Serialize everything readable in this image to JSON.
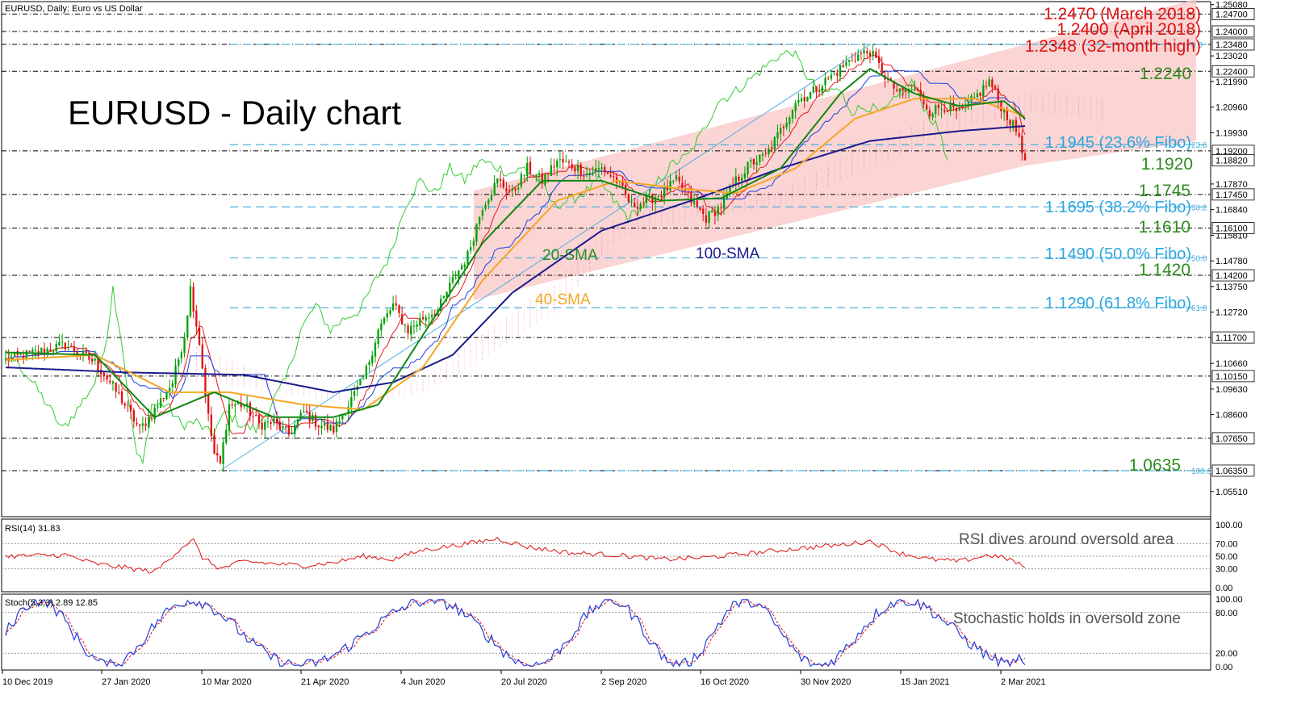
{
  "header": {
    "symbol_info": "EURUSD, Daily:  Euro vs US Dollar",
    "big_title": "EURUSD - Daily chart"
  },
  "colors": {
    "bull": "#00a000",
    "bear": "#e01010",
    "sma20": "#118811",
    "sma40": "#f5a623",
    "sma100": "#1a1a8c",
    "tenkan": "#e31a1c",
    "kijun": "#1f3fdf",
    "chikou": "#33cc33",
    "channel": "#f9c5c5",
    "fibo": "#4fb0e0",
    "level": "#000000",
    "red_ann": "#e01010",
    "green_ann": "#2e8b1e",
    "blue_ann": "#2aa7e0",
    "rsi": "#e01010",
    "stoch_k": "#1f3fdf",
    "stoch_d": "#e01010"
  },
  "chart_data": {
    "type": "candlestick",
    "ylim": [
      1.045,
      1.252
    ],
    "x_tick_labels": [
      "10 Dec 2019",
      "27 Jan 2020",
      "10 Mar 2020",
      "21 Apr 2020",
      "4 Jun 2020",
      "20 Jul 2020",
      "2 Sep 2020",
      "16 Oct 2020",
      "30 Nov 2020",
      "15 Jan 2021",
      "2 Mar 2021"
    ],
    "price_axis_ticks": [
      "1.25080",
      "1.23020",
      "1.21990",
      "1.20960",
      "1.19930",
      "1.17870",
      "1.16840",
      "1.15810",
      "1.14780",
      "1.13750",
      "1.12720",
      "1.10660",
      "1.09630",
      "1.08600",
      "1.05510"
    ],
    "horizontal_levels": [
      {
        "value": 1.247,
        "label_axis": "1.24700",
        "annotation": "1.2470 (March 2018)",
        "color": "red"
      },
      {
        "value": 1.24,
        "label_axis": "1.24000",
        "annotation": "1.2400 (April 2018)",
        "color": "red"
      },
      {
        "value": 1.2348,
        "label_axis": "1.23480",
        "annotation": "1.2348 (32-month high)",
        "color": "red"
      },
      {
        "value": 1.224,
        "label_axis": "1.22400",
        "annotation": "1.2240",
        "color": "green"
      },
      {
        "value": 1.192,
        "label_axis": "1.19200",
        "annotation": "1.1920",
        "color": "green"
      },
      {
        "value": 1.1745,
        "label_axis": "1.17450",
        "annotation": "1.1745",
        "color": "green"
      },
      {
        "value": 1.161,
        "label_axis": "1.16100",
        "annotation": "1.1610",
        "color": "green"
      },
      {
        "value": 1.142,
        "label_axis": "1.14200",
        "annotation": "1.1420",
        "color": "green"
      },
      {
        "value": 1.117,
        "label_axis": "1.11700",
        "annotation": "",
        "color": "none"
      },
      {
        "value": 1.1015,
        "label_axis": "1.10150",
        "annotation": "",
        "color": "none"
      },
      {
        "value": 1.0765,
        "label_axis": "1.07650",
        "annotation": "",
        "color": "none"
      },
      {
        "value": 1.0635,
        "label_axis": "1.06350",
        "annotation": "1.0635",
        "color": "green"
      }
    ],
    "current_price_label": "1.18820",
    "current_price": 1.1882,
    "fibonacci": [
      {
        "value": 1.1945,
        "annotation": "1.1945 (23.6% Fibo)",
        "ratio": "23.6"
      },
      {
        "value": 1.1695,
        "annotation": "1.1695 (38.2% Fibo)",
        "ratio": "38.2"
      },
      {
        "value": 1.149,
        "annotation": "1.1490 (50.0% Fibo)",
        "ratio": "50.0"
      },
      {
        "value": 1.129,
        "annotation": "1.1290 (61.8% Fibo)",
        "ratio": "61.8"
      },
      {
        "value": 1.2348,
        "annotation": "",
        "ratio": "0.0"
      },
      {
        "value": 1.0635,
        "annotation": "",
        "ratio": "100.0"
      }
    ],
    "ma_labels": {
      "sma20": "20-SMA",
      "sma40": "40-SMA",
      "sma100": "100-SMA"
    },
    "price_anchors": [
      [
        0,
        1.108
      ],
      [
        10,
        1.111
      ],
      [
        20,
        1.114
      ],
      [
        30,
        1.107
      ],
      [
        35,
        1.099
      ],
      [
        40,
        1.09
      ],
      [
        45,
        1.08
      ],
      [
        50,
        1.088
      ],
      [
        56,
        1.099
      ],
      [
        60,
        1.118
      ],
      [
        62,
        1.137
      ],
      [
        65,
        1.115
      ],
      [
        68,
        1.085
      ],
      [
        70,
        1.07
      ],
      [
        72,
        1.066
      ],
      [
        75,
        1.09
      ],
      [
        80,
        1.09
      ],
      [
        85,
        1.082
      ],
      [
        90,
        1.083
      ],
      [
        95,
        1.078
      ],
      [
        100,
        1.087
      ],
      [
        105,
        1.082
      ],
      [
        110,
        1.08
      ],
      [
        115,
        1.09
      ],
      [
        120,
        1.1
      ],
      [
        125,
        1.12
      ],
      [
        130,
        1.13
      ],
      [
        135,
        1.12
      ],
      [
        140,
        1.125
      ],
      [
        145,
        1.128
      ],
      [
        150,
        1.14
      ],
      [
        155,
        1.15
      ],
      [
        160,
        1.17
      ],
      [
        165,
        1.18
      ],
      [
        170,
        1.175
      ],
      [
        175,
        1.185
      ],
      [
        180,
        1.18
      ],
      [
        185,
        1.188
      ],
      [
        190,
        1.186
      ],
      [
        195,
        1.183
      ],
      [
        200,
        1.185
      ],
      [
        205,
        1.18
      ],
      [
        210,
        1.17
      ],
      [
        215,
        1.172
      ],
      [
        220,
        1.175
      ],
      [
        225,
        1.18
      ],
      [
        230,
        1.172
      ],
      [
        235,
        1.165
      ],
      [
        240,
        1.17
      ],
      [
        245,
        1.18
      ],
      [
        250,
        1.187
      ],
      [
        255,
        1.19
      ],
      [
        260,
        1.2
      ],
      [
        265,
        1.212
      ],
      [
        270,
        1.215
      ],
      [
        275,
        1.22
      ],
      [
        280,
        1.225
      ],
      [
        285,
        1.23
      ],
      [
        290,
        1.232
      ],
      [
        293,
        1.226
      ],
      [
        296,
        1.22
      ],
      [
        300,
        1.215
      ],
      [
        305,
        1.217
      ],
      [
        310,
        1.208
      ],
      [
        315,
        1.21
      ],
      [
        320,
        1.207
      ],
      [
        325,
        1.213
      ],
      [
        330,
        1.22
      ],
      [
        334,
        1.21
      ],
      [
        337,
        1.204
      ],
      [
        340,
        1.198
      ],
      [
        342,
        1.1882
      ]
    ],
    "sma20_anchors": [
      [
        0,
        1.111
      ],
      [
        30,
        1.11
      ],
      [
        50,
        1.085
      ],
      [
        70,
        1.095
      ],
      [
        90,
        1.085
      ],
      [
        110,
        1.085
      ],
      [
        125,
        1.09
      ],
      [
        140,
        1.118
      ],
      [
        160,
        1.155
      ],
      [
        180,
        1.18
      ],
      [
        200,
        1.18
      ],
      [
        220,
        1.172
      ],
      [
        240,
        1.173
      ],
      [
        260,
        1.185
      ],
      [
        280,
        1.215
      ],
      [
        290,
        1.225
      ],
      [
        305,
        1.215
      ],
      [
        320,
        1.21
      ],
      [
        335,
        1.212
      ],
      [
        342,
        1.205
      ]
    ],
    "sma40_anchors": [
      [
        0,
        1.108
      ],
      [
        30,
        1.11
      ],
      [
        55,
        1.095
      ],
      [
        75,
        1.095
      ],
      [
        100,
        1.09
      ],
      [
        120,
        1.088
      ],
      [
        140,
        1.105
      ],
      [
        160,
        1.14
      ],
      [
        185,
        1.172
      ],
      [
        205,
        1.18
      ],
      [
        225,
        1.177
      ],
      [
        245,
        1.175
      ],
      [
        265,
        1.185
      ],
      [
        285,
        1.205
      ],
      [
        305,
        1.213
      ],
      [
        325,
        1.213
      ],
      [
        342,
        1.206
      ]
    ],
    "sma100_anchors": [
      [
        0,
        1.105
      ],
      [
        40,
        1.103
      ],
      [
        80,
        1.102
      ],
      [
        110,
        1.095
      ],
      [
        130,
        1.099
      ],
      [
        150,
        1.11
      ],
      [
        170,
        1.135
      ],
      [
        200,
        1.16
      ],
      [
        230,
        1.172
      ],
      [
        260,
        1.185
      ],
      [
        290,
        1.196
      ],
      [
        320,
        1.2
      ],
      [
        342,
        1.202
      ]
    ],
    "rsi": {
      "label": "RSI(14) 31.83",
      "annotation": "RSI dives around oversold area",
      "ticks": [
        "100.00",
        "70.00",
        "50.00",
        "30.00",
        "0.00"
      ],
      "ylim": [
        0,
        100
      ],
      "levels": [
        70,
        50,
        30
      ],
      "anchors": [
        [
          0,
          50
        ],
        [
          20,
          52
        ],
        [
          30,
          38
        ],
        [
          40,
          32
        ],
        [
          50,
          25
        ],
        [
          60,
          68
        ],
        [
          63,
          75
        ],
        [
          66,
          48
        ],
        [
          72,
          30
        ],
        [
          80,
          42
        ],
        [
          90,
          38
        ],
        [
          100,
          35
        ],
        [
          110,
          40
        ],
        [
          120,
          50
        ],
        [
          130,
          45
        ],
        [
          140,
          60
        ],
        [
          155,
          70
        ],
        [
          165,
          78
        ],
        [
          175,
          65
        ],
        [
          190,
          55
        ],
        [
          205,
          52
        ],
        [
          220,
          45
        ],
        [
          235,
          48
        ],
        [
          250,
          55
        ],
        [
          265,
          62
        ],
        [
          280,
          68
        ],
        [
          290,
          74
        ],
        [
          300,
          55
        ],
        [
          310,
          45
        ],
        [
          320,
          42
        ],
        [
          330,
          52
        ],
        [
          337,
          45
        ],
        [
          342,
          31.83
        ]
      ]
    },
    "stochastic": {
      "label": "Stoch(5,3,3) 2.89 12.85",
      "annotation": "Stochastic holds in oversold zone",
      "ticks": [
        "100.00",
        "80.00",
        "20.00",
        "0.00"
      ],
      "ylim": [
        0,
        100
      ],
      "levels": [
        80,
        20
      ],
      "k_last": 2.89,
      "d_last": 12.85
    }
  }
}
